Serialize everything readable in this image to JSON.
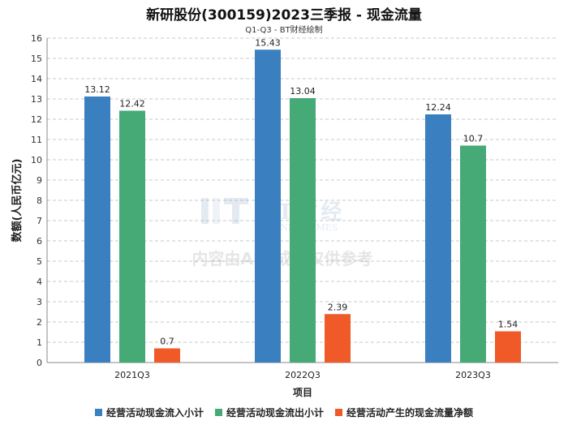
{
  "chart_data": {
    "type": "bar",
    "title": "新研股份(300159)2023三季报 - 现金流量",
    "subtitle": "Q1-Q3 - BT财经绘制",
    "xlabel": "项目",
    "ylabel": "数额(人民币亿元)",
    "categories": [
      "2021Q3",
      "2022Q3",
      "2023Q3"
    ],
    "ylim": [
      0,
      16
    ],
    "yticks": [
      0,
      1,
      2,
      3,
      4,
      5,
      6,
      7,
      8,
      9,
      10,
      11,
      12,
      13,
      14,
      15,
      16
    ],
    "grid": true,
    "legend_position": "bottom",
    "series": [
      {
        "name": "经营活动现金流入小计",
        "color": "#3a7fbf",
        "values": [
          13.12,
          15.43,
          12.24
        ],
        "labels": [
          "13.12",
          "15.43",
          "12.24"
        ]
      },
      {
        "name": "经营活动现金流出小计",
        "color": "#46aa77",
        "values": [
          12.42,
          13.04,
          10.7
        ],
        "labels": [
          "12.42",
          "13.04",
          "10.7"
        ]
      },
      {
        "name": "经营活动产生的现金流量净额",
        "color": "#f05a28",
        "values": [
          0.7,
          2.39,
          1.54
        ],
        "labels": [
          "0.7",
          "2.39",
          "1.54"
        ]
      }
    ]
  },
  "watermark": {
    "logo_text": "BT财经",
    "logo_subtext": "BUSINESSTIMES",
    "notice": "内容由AI生成，仅供参考"
  }
}
